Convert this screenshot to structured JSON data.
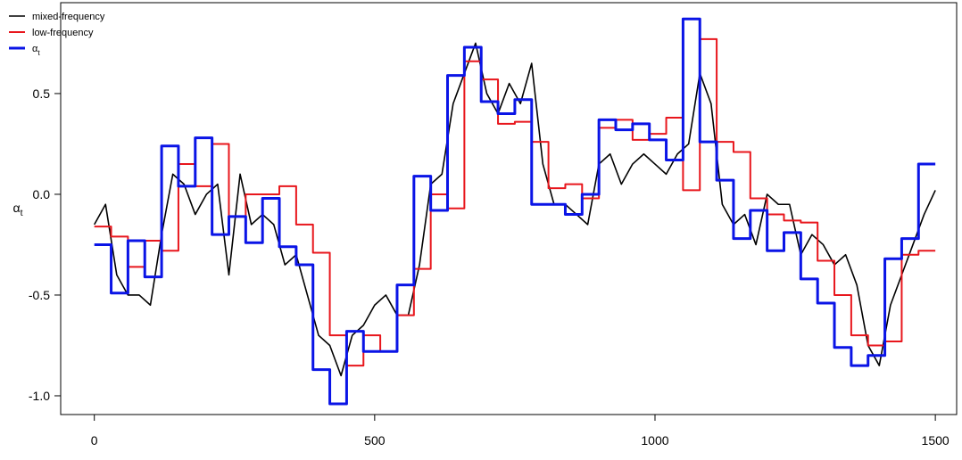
{
  "chart_data": {
    "type": "line",
    "ylabel": "αt",
    "xlim": [
      -60,
      1538
    ],
    "ylim": [
      -1.093,
      0.951
    ],
    "xticks": [
      0,
      500,
      1000,
      1500
    ],
    "yticks": [
      {
        "value": -1,
        "label": "-1.0"
      },
      -0.5,
      {
        "value": 0,
        "label": "0.0"
      },
      0.5
    ],
    "legend": "top-left",
    "series": [
      {
        "name": "mixed-frequency",
        "color": "#000000",
        "step": false,
        "x": [
          0,
          20,
          40,
          60,
          80,
          100,
          120,
          140,
          160,
          180,
          200,
          220,
          240,
          260,
          280,
          300,
          320,
          340,
          360,
          380,
          400,
          420,
          440,
          460,
          480,
          500,
          520,
          540,
          560,
          580,
          600,
          620,
          640,
          660,
          680,
          700,
          720,
          740,
          760,
          780,
          800,
          820,
          840,
          860,
          880,
          900,
          920,
          940,
          960,
          980,
          1000,
          1020,
          1040,
          1060,
          1080,
          1100,
          1120,
          1140,
          1160,
          1180,
          1200,
          1220,
          1240,
          1260,
          1280,
          1300,
          1320,
          1340,
          1360,
          1380,
          1400,
          1420,
          1440,
          1460,
          1480,
          1500
        ],
        "values": [
          -0.15,
          -0.05,
          -0.4,
          -0.5,
          -0.5,
          -0.55,
          -0.2,
          0.1,
          0.05,
          -0.1,
          0.0,
          0.05,
          -0.4,
          0.1,
          -0.15,
          -0.1,
          -0.15,
          -0.35,
          -0.3,
          -0.5,
          -0.7,
          -0.75,
          -0.9,
          -0.7,
          -0.65,
          -0.55,
          -0.5,
          -0.6,
          -0.6,
          -0.35,
          0.05,
          0.1,
          0.45,
          0.6,
          0.75,
          0.5,
          0.4,
          0.55,
          0.45,
          0.65,
          0.15,
          -0.05,
          -0.05,
          -0.1,
          -0.15,
          0.15,
          0.2,
          0.05,
          0.15,
          0.2,
          0.15,
          0.1,
          0.2,
          0.25,
          0.6,
          0.45,
          -0.05,
          -0.15,
          -0.1,
          -0.25,
          0.0,
          -0.05,
          -0.05,
          -0.3,
          -0.2,
          -0.25,
          -0.35,
          -0.3,
          -0.45,
          -0.75,
          -0.85,
          -0.55,
          -0.4,
          -0.25,
          -0.1,
          0.02
        ]
      },
      {
        "name": "low-frequency",
        "color": "#e8161c",
        "step": true,
        "x": [
          0,
          30,
          60,
          90,
          120,
          150,
          180,
          210,
          240,
          270,
          300,
          330,
          360,
          390,
          420,
          450,
          480,
          510,
          540,
          570,
          600,
          630,
          660,
          690,
          720,
          750,
          780,
          810,
          840,
          870,
          900,
          930,
          960,
          990,
          1020,
          1050,
          1080,
          1110,
          1140,
          1170,
          1200,
          1230,
          1260,
          1290,
          1320,
          1350,
          1380,
          1410,
          1440,
          1470,
          1500
        ],
        "values": [
          -0.16,
          -0.21,
          -0.36,
          -0.23,
          -0.28,
          0.15,
          0.04,
          0.25,
          -0.11,
          0.0,
          0.0,
          0.04,
          -0.15,
          -0.29,
          -0.7,
          -0.85,
          -0.7,
          -0.78,
          -0.6,
          -0.37,
          0.0,
          -0.07,
          0.66,
          0.57,
          0.35,
          0.36,
          0.26,
          0.03,
          0.05,
          -0.02,
          0.33,
          0.37,
          0.27,
          0.3,
          0.38,
          0.02,
          0.77,
          0.26,
          0.21,
          -0.02,
          -0.1,
          -0.13,
          -0.14,
          -0.33,
          -0.5,
          -0.7,
          -0.75,
          -0.73,
          -0.3,
          -0.28,
          -0.28
        ]
      },
      {
        "name": "αt",
        "color": "#0a14e6",
        "step": true,
        "x": [
          0,
          30,
          60,
          90,
          120,
          150,
          180,
          210,
          240,
          270,
          300,
          330,
          360,
          390,
          420,
          450,
          480,
          510,
          540,
          570,
          600,
          630,
          660,
          690,
          720,
          750,
          780,
          810,
          840,
          870,
          900,
          930,
          960,
          990,
          1020,
          1050,
          1080,
          1110,
          1140,
          1170,
          1200,
          1230,
          1260,
          1290,
          1320,
          1350,
          1380,
          1410,
          1440,
          1470,
          1500
        ],
        "values": [
          -0.25,
          -0.49,
          -0.23,
          -0.41,
          0.24,
          0.04,
          0.28,
          -0.2,
          -0.11,
          -0.24,
          -0.02,
          -0.26,
          -0.35,
          -0.87,
          -1.04,
          -0.68,
          -0.78,
          -0.78,
          -0.45,
          0.09,
          -0.08,
          0.59,
          0.73,
          0.46,
          0.4,
          0.47,
          -0.05,
          -0.05,
          -0.1,
          0.0,
          0.37,
          0.32,
          0.35,
          0.27,
          0.17,
          0.87,
          0.26,
          0.07,
          -0.22,
          -0.08,
          -0.28,
          -0.19,
          -0.42,
          -0.54,
          -0.76,
          -0.85,
          -0.8,
          -0.32,
          -0.22,
          0.15,
          0.15
        ]
      }
    ]
  }
}
